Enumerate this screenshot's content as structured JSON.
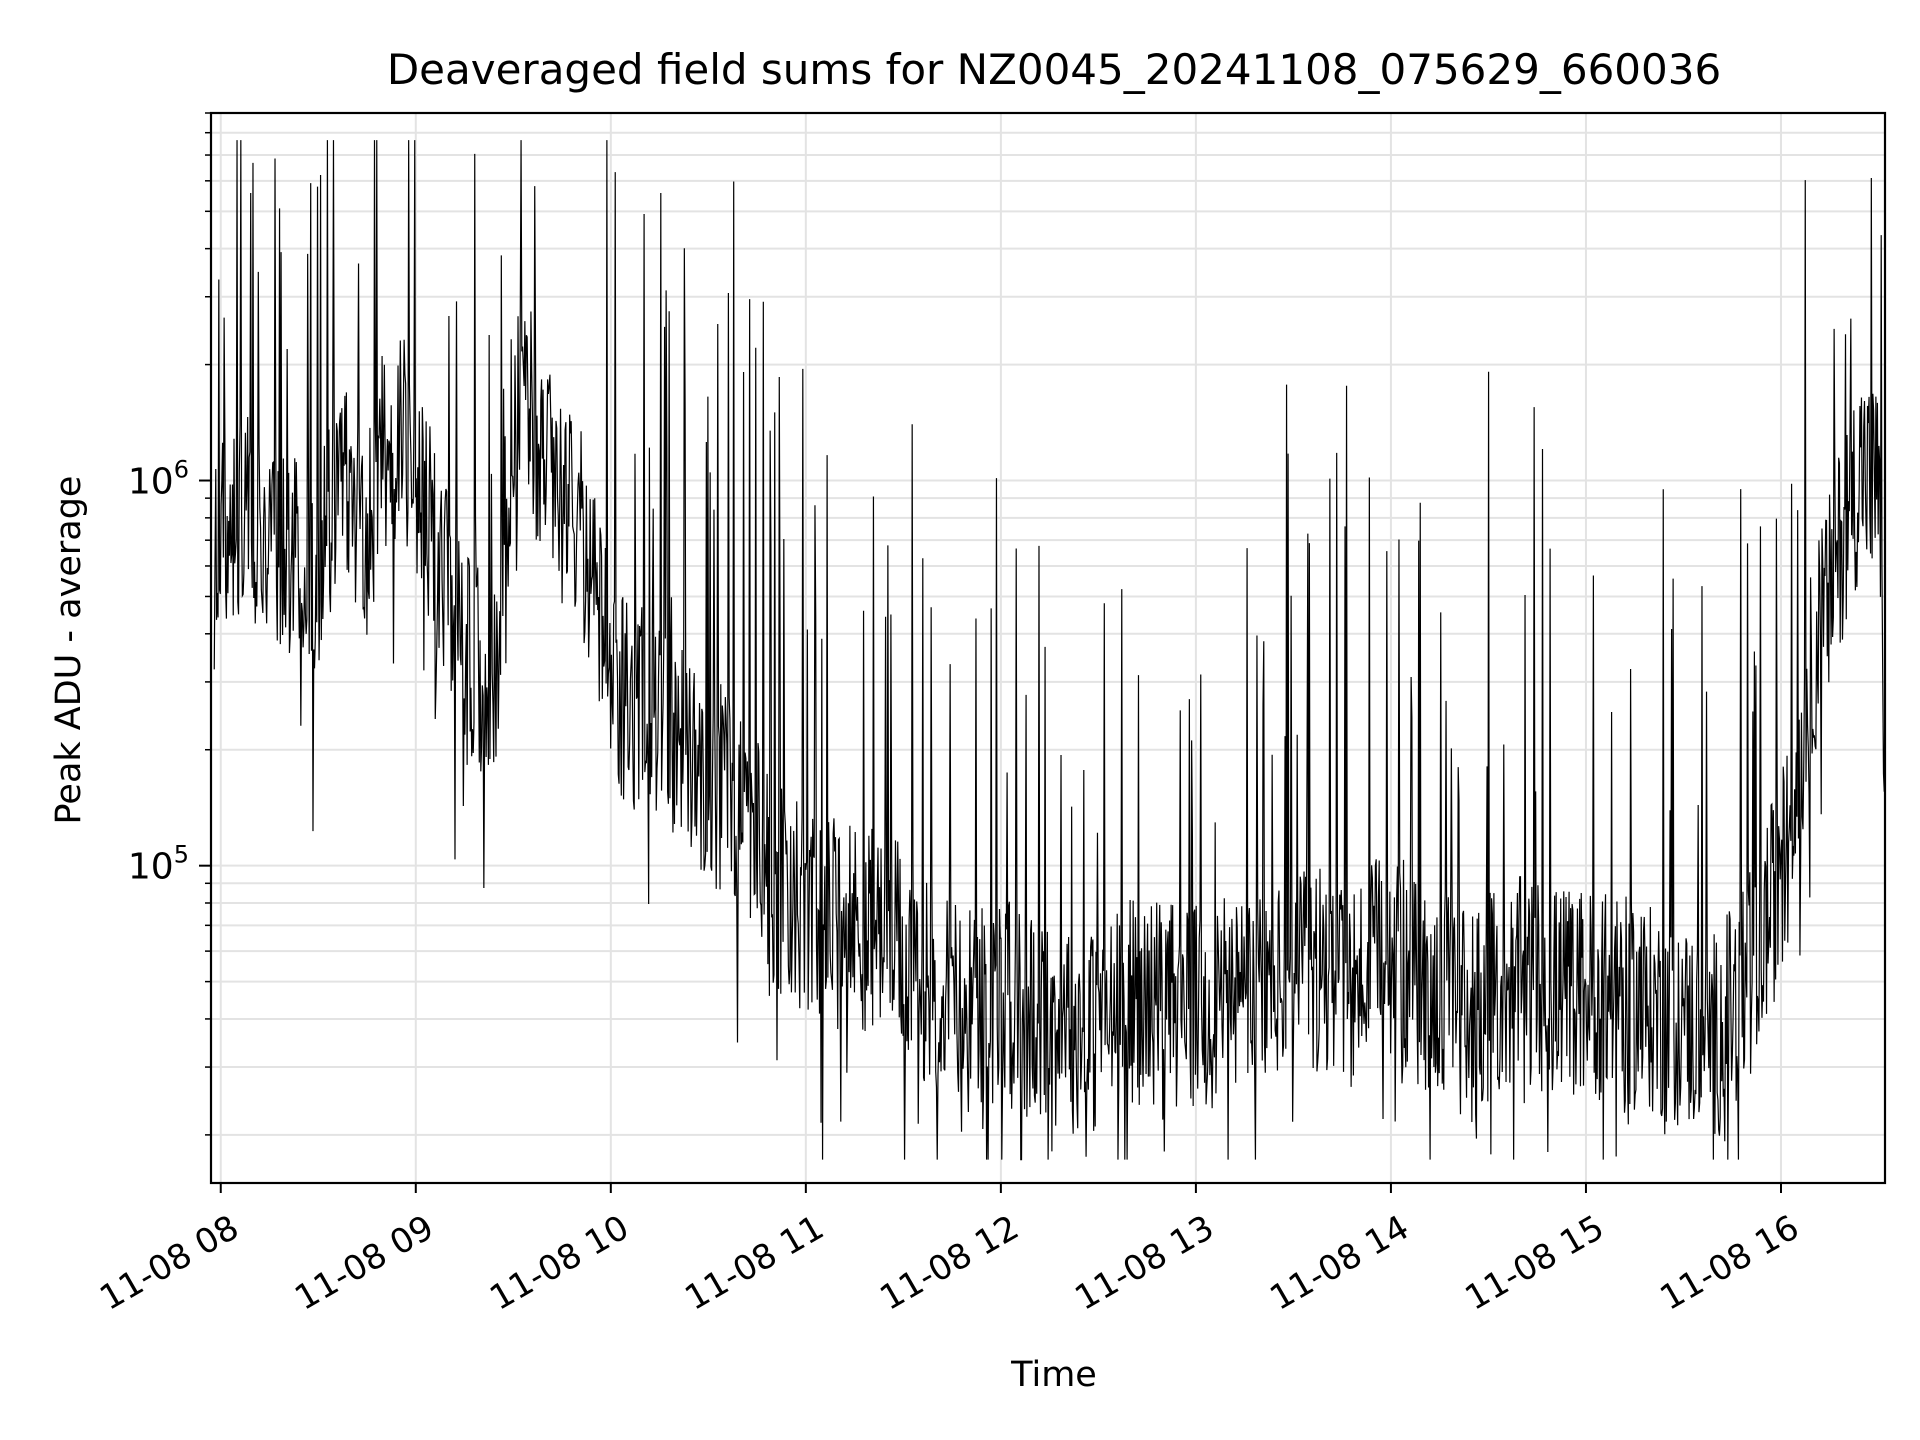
{
  "chart_data": {
    "type": "line",
    "title": "Deaveraged field sums for NZ0045_20241108_075629_660036",
    "xlabel": "Time",
    "ylabel": "Peak ADU - average",
    "x_ticks": [
      "11-08 08",
      "11-08 09",
      "11-08 10",
      "11-08 11",
      "11-08 12",
      "11-08 13",
      "11-08 14",
      "11-08 15",
      "11-08 16"
    ],
    "y_ticks": [
      {
        "base": "10",
        "exp": "5",
        "value": 100000
      },
      {
        "base": "10",
        "exp": "6",
        "value": 1000000
      }
    ],
    "y_scale": "log",
    "x_range": [
      "2024-11-08 07:57",
      "2024-11-08 16:32"
    ],
    "ylim": [
      15000,
      9000000
    ],
    "grid": true,
    "line_color": "#000000",
    "series": [
      {
        "x_unit": "time of day (2024-11-08)",
        "points": [
          [
            "07:58",
            700000
          ],
          [
            "08:05",
            750000
          ],
          [
            "08:10",
            800000
          ],
          [
            "08:15",
            700000
          ],
          [
            "08:20",
            650000
          ],
          [
            "08:25",
            600000
          ],
          [
            "08:30",
            550000
          ],
          [
            "08:35",
            900000
          ],
          [
            "08:40",
            1000000
          ],
          [
            "08:45",
            700000
          ],
          [
            "08:50",
            1200000
          ],
          [
            "08:55",
            1300000
          ],
          [
            "09:00",
            1100000
          ],
          [
            "09:05",
            700000
          ],
          [
            "09:10",
            500000
          ],
          [
            "09:15",
            400000
          ],
          [
            "09:20",
            300000
          ],
          [
            "09:25",
            350000
          ],
          [
            "09:30",
            1500000
          ],
          [
            "09:35",
            1600000
          ],
          [
            "09:40",
            1000000
          ],
          [
            "09:45",
            1100000
          ],
          [
            "09:50",
            800000
          ],
          [
            "09:55",
            500000
          ],
          [
            "10:00",
            300000
          ],
          [
            "10:10",
            250000
          ],
          [
            "10:20",
            220000
          ],
          [
            "10:30",
            170000
          ],
          [
            "10:40",
            140000
          ],
          [
            "10:50",
            90000
          ],
          [
            "11:00",
            75000
          ],
          [
            "11:10",
            70000
          ],
          [
            "11:20",
            68000
          ],
          [
            "11:30",
            60000
          ],
          [
            "11:40",
            48000
          ],
          [
            "11:50",
            42000
          ],
          [
            "12:00",
            45000
          ],
          [
            "12:10",
            40000
          ],
          [
            "12:20",
            38000
          ],
          [
            "12:30",
            37000
          ],
          [
            "12:40",
            45000
          ],
          [
            "12:50",
            45000
          ],
          [
            "13:00",
            42000
          ],
          [
            "13:10",
            44000
          ],
          [
            "13:20",
            48000
          ],
          [
            "13:30",
            50000
          ],
          [
            "13:40",
            55000
          ],
          [
            "13:50",
            50000
          ],
          [
            "14:00",
            60000
          ],
          [
            "14:10",
            48000
          ],
          [
            "14:20",
            45000
          ],
          [
            "14:30",
            45000
          ],
          [
            "14:40",
            50000
          ],
          [
            "14:50",
            48000
          ],
          [
            "15:00",
            47000
          ],
          [
            "15:10",
            45000
          ],
          [
            "15:20",
            42000
          ],
          [
            "15:30",
            38000
          ],
          [
            "15:40",
            36000
          ],
          [
            "15:50",
            50000
          ],
          [
            "16:00",
            95000
          ],
          [
            "16:05",
            160000
          ],
          [
            "16:10",
            350000
          ],
          [
            "16:15",
            500000
          ],
          [
            "16:20",
            800000
          ],
          [
            "16:25",
            1100000
          ],
          [
            "16:30",
            900000
          ],
          [
            "16:32",
            200000
          ]
        ]
      }
    ]
  }
}
